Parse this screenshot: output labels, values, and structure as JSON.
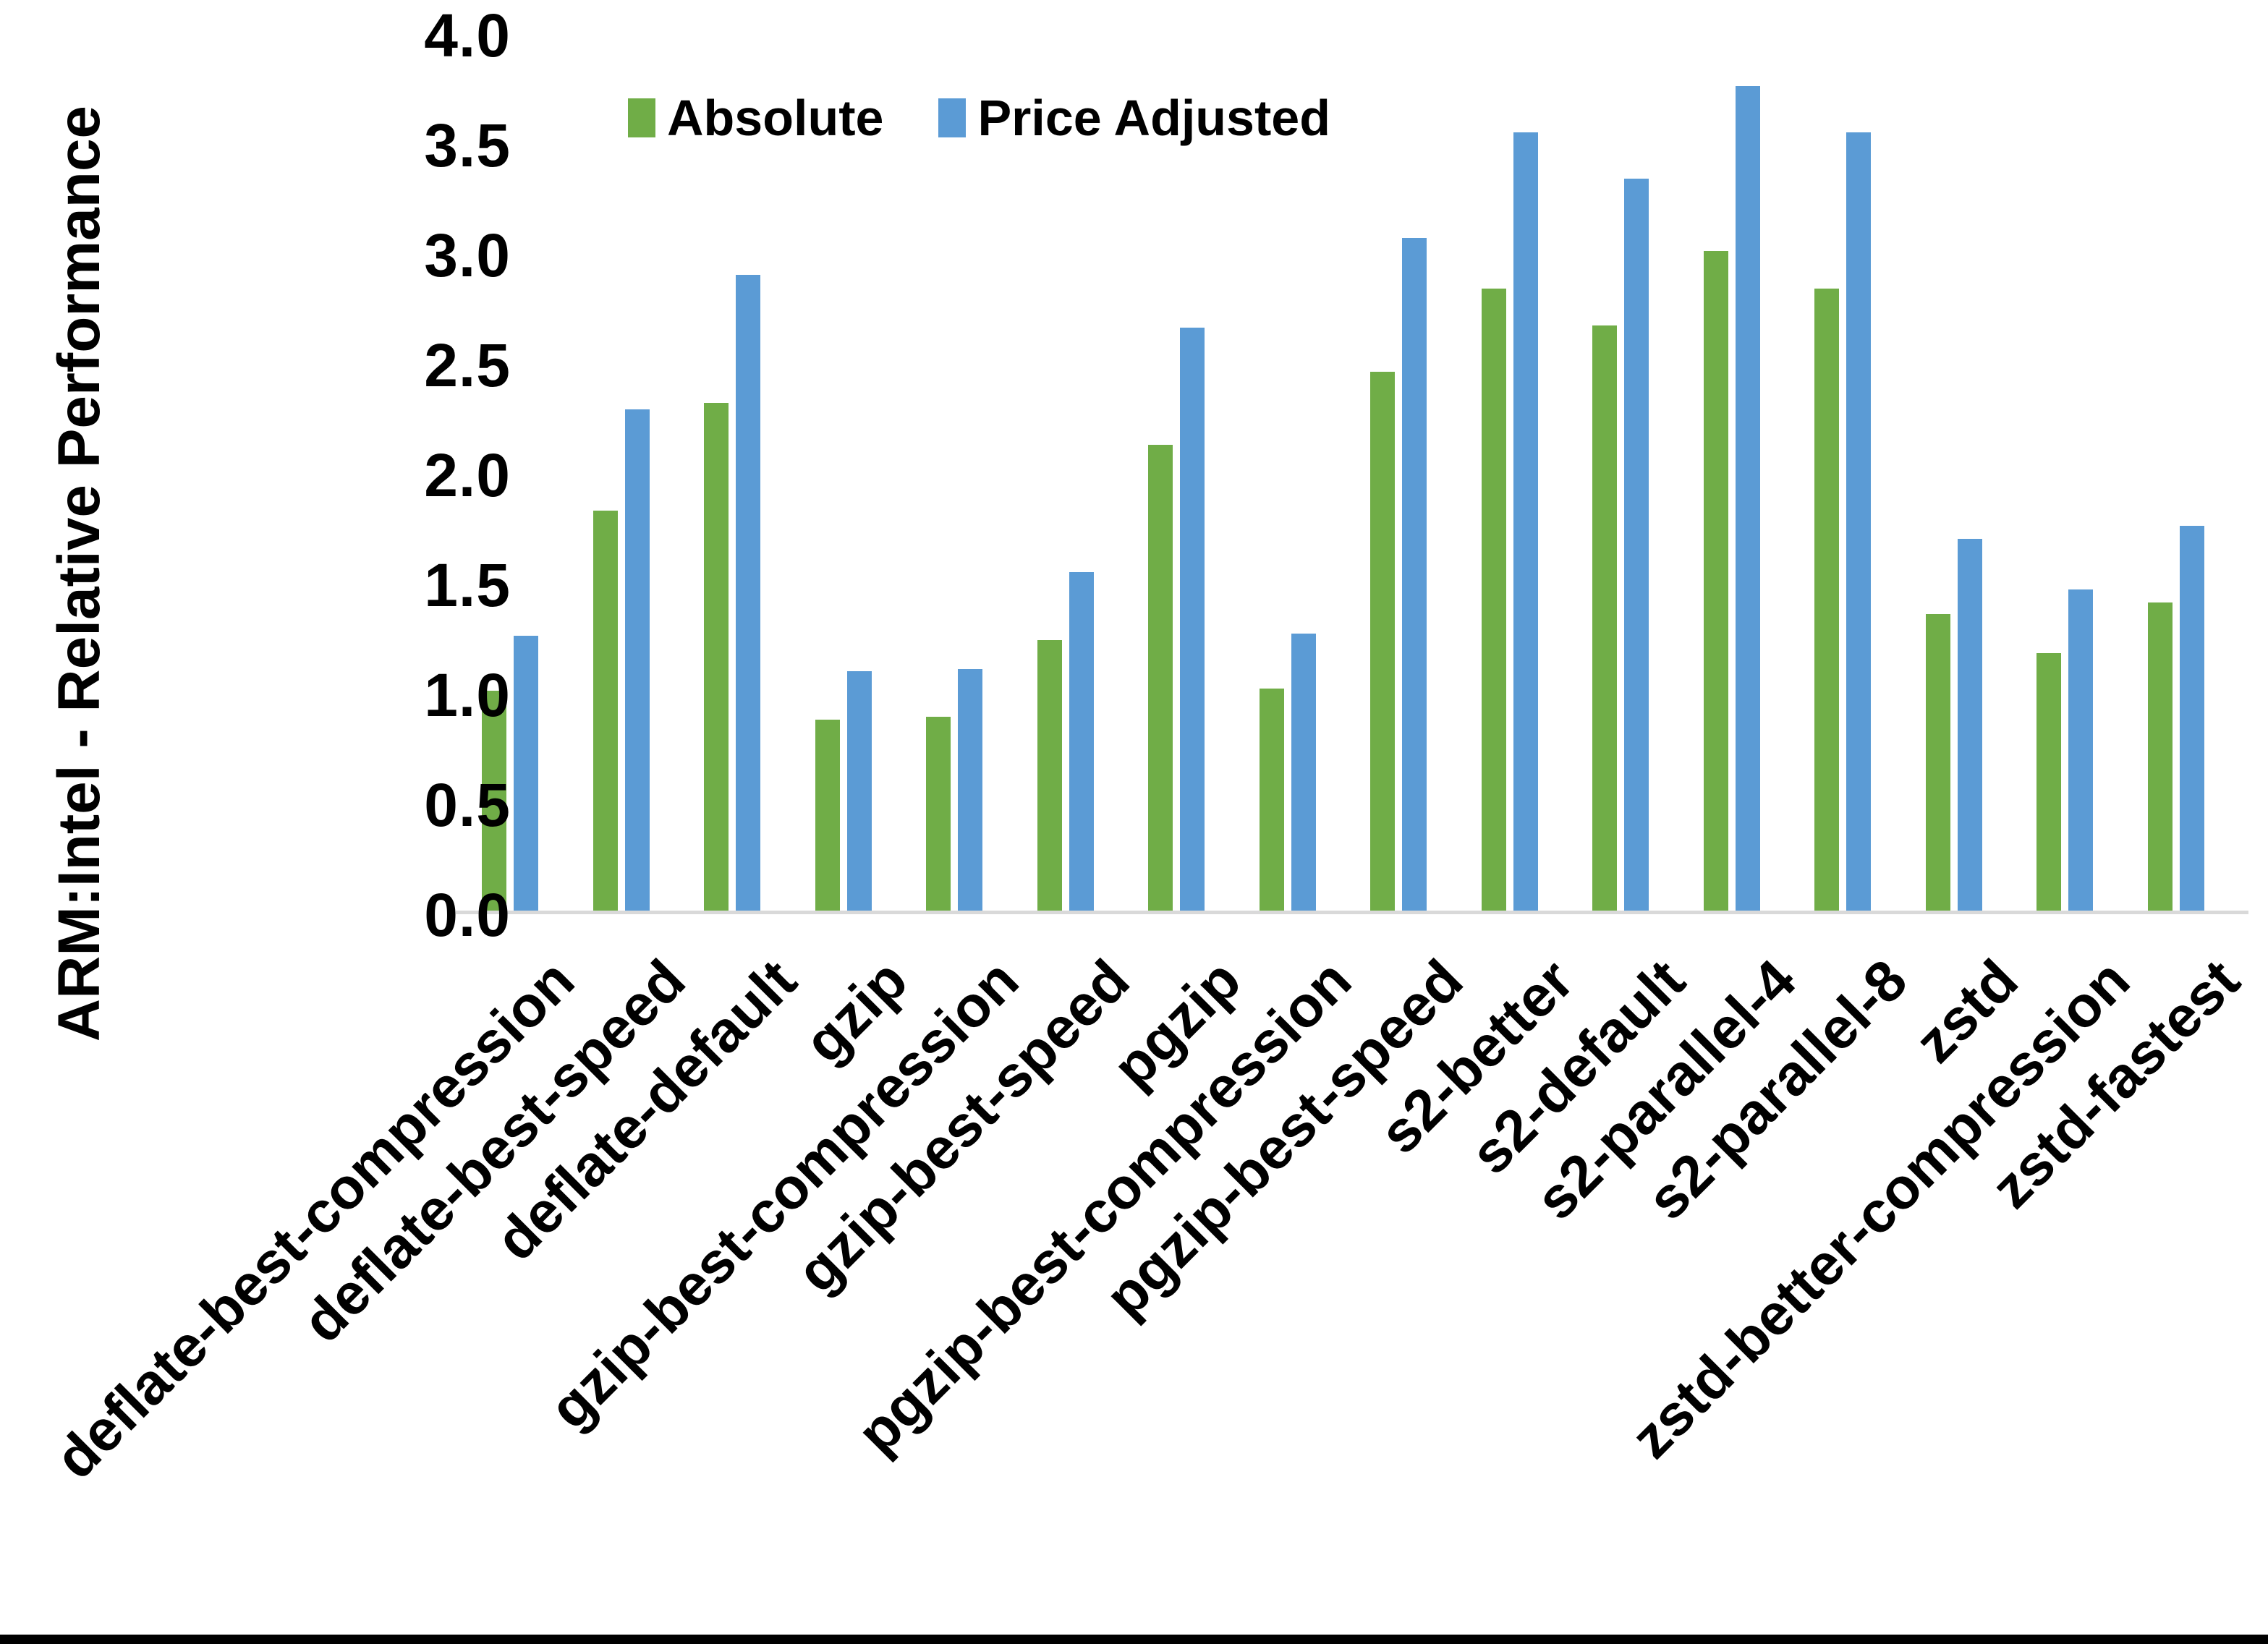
{
  "chart_data": {
    "type": "bar",
    "title": "",
    "xlabel": "",
    "ylabel": "ARM:Intel - Relative Performance",
    "ylim": [
      0.0,
      4.0
    ],
    "ytick_step": 0.5,
    "grid": false,
    "legend_position": "top",
    "axis_line_color": "#d9d9d9",
    "categories": [
      "deflate-best-compression",
      "deflate-best-speed",
      "deflate-default",
      "gzip",
      "gzip-best-compression",
      "gzip-best-speed",
      "pgzip",
      "pgzip-best-compression",
      "pgzip-best-speed",
      "s2-better",
      "s2-default",
      "s2-parallel-4",
      "s2-parallel-8",
      "zstd",
      "zstd-better-compression",
      "zstd-fastest"
    ],
    "series": [
      {
        "name": "Absolute",
        "color": "#70AD47",
        "values": [
          1.0,
          1.82,
          2.31,
          0.87,
          0.88,
          1.23,
          2.12,
          1.01,
          2.45,
          2.83,
          2.66,
          3.0,
          2.83,
          1.35,
          1.17,
          1.4
        ]
      },
      {
        "name": "Price Adjusted",
        "color": "#5B9BD5",
        "values": [
          1.25,
          2.28,
          2.89,
          1.09,
          1.1,
          1.54,
          2.65,
          1.26,
          3.06,
          3.54,
          3.33,
          3.75,
          3.54,
          1.69,
          1.46,
          1.75
        ]
      }
    ]
  },
  "axes": {
    "y_title": "ARM:Intel - Relative Performance",
    "y_ticks": [
      "4.0",
      "3.5",
      "3.0",
      "2.5",
      "2.0",
      "1.5",
      "1.0",
      "0.5",
      "0.0"
    ]
  },
  "legend": {
    "items": [
      {
        "label": "Absolute",
        "color": "#70AD47"
      },
      {
        "label": "Price Adjusted",
        "color": "#5B9BD5"
      }
    ]
  }
}
